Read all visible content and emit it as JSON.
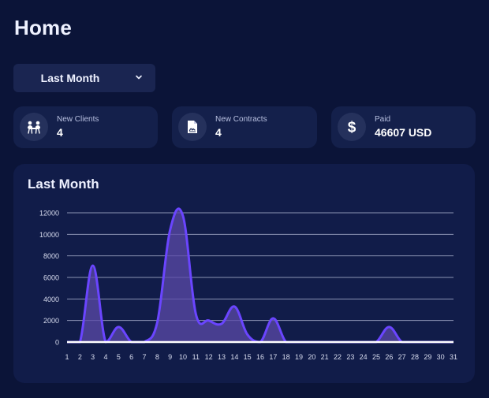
{
  "page": {
    "title": "Home"
  },
  "range_select": {
    "value": "Last Month"
  },
  "stats": [
    {
      "label": "New Clients",
      "value": "4",
      "icon": "clients-icon"
    },
    {
      "label": "New Contracts",
      "value": "4",
      "icon": "contract-icon"
    },
    {
      "label": "Paid",
      "value": "46607 USD",
      "icon": "dollar-icon"
    }
  ],
  "colors": {
    "background": "#0b1438",
    "card": "#14204b",
    "chart_card": "#111c49",
    "series_line": "#6a45ff",
    "series_fill": "#5b4aa8",
    "baseline": "#ffffff"
  },
  "chart_data": {
    "type": "area",
    "title": "Last Month",
    "x": [
      1,
      2,
      3,
      4,
      5,
      6,
      7,
      8,
      9,
      10,
      11,
      12,
      13,
      14,
      15,
      16,
      17,
      18,
      19,
      20,
      21,
      22,
      23,
      24,
      25,
      26,
      27,
      28,
      29,
      30,
      31
    ],
    "series": [
      {
        "values": [
          0,
          0,
          7100,
          0,
          1400,
          0,
          0,
          1800,
          10400,
          11700,
          2600,
          2000,
          1700,
          3300,
          700,
          0,
          2200,
          0,
          0,
          0,
          0,
          0,
          0,
          0,
          0,
          1400,
          0,
          0,
          0,
          0,
          0
        ]
      }
    ],
    "ylim": [
      0,
      12000
    ],
    "yticks": [
      0,
      2000,
      4000,
      6000,
      8000,
      10000,
      12000
    ],
    "grid": true,
    "legend": "none",
    "xlabel": "",
    "ylabel": ""
  }
}
